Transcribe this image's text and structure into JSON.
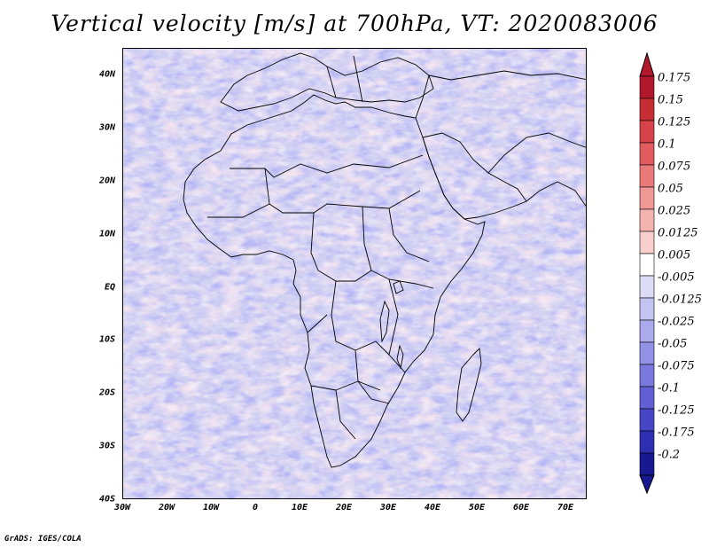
{
  "title": "Vertical velocity [m/s] at 700hPa, VT: 2020083006",
  "credit": "GrADS: IGES/COLA",
  "lat_labels": [
    "40N",
    "30N",
    "20N",
    "10N",
    "EQ",
    "10S",
    "20S",
    "30S",
    "40S"
  ],
  "lon_labels": [
    "30W",
    "20W",
    "10W",
    "0",
    "10E",
    "20E",
    "30E",
    "40E",
    "50E",
    "60E",
    "70E"
  ],
  "colorbar": {
    "labels": [
      "0.175",
      "0.15",
      "0.125",
      "0.1",
      "0.075",
      "0.05",
      "0.025",
      "0.0125",
      "0.005",
      "-0.005",
      "-0.0125",
      "-0.025",
      "-0.05",
      "-0.075",
      "-0.1",
      "-0.125",
      "-0.175",
      "-0.2"
    ],
    "colors": [
      "#b2182b",
      "#c62d35",
      "#d6434a",
      "#e25c5f",
      "#ea7a79",
      "#f09894",
      "#f5b3ae",
      "#f9cfcb",
      "#ffffff",
      "#dcdcf6",
      "#c4c4f2",
      "#aaaaec",
      "#9292e6",
      "#7a7ade",
      "#6060d4",
      "#4646c6",
      "#2e2eb0",
      "#181890"
    ]
  }
}
